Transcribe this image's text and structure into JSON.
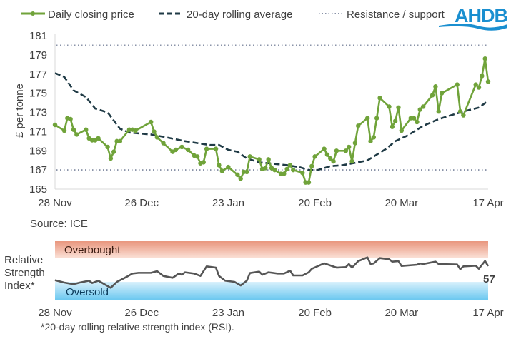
{
  "legend": {
    "price": "Daily closing price",
    "average": "20-day rolling average",
    "levels": "Resistance / support"
  },
  "logo": {
    "text": "AHDB",
    "color": "#1a8fd0"
  },
  "source": "Source: ICE",
  "footnote": "*20-day rolling relative strength index (RSI).",
  "colors": {
    "price": "#70a33a",
    "average": "#1f3a45",
    "levels": "#8a93a8",
    "rsi": "#555555",
    "overbought": "#e8937a",
    "oversold": "#6cc8f0"
  },
  "chart_data": [
    {
      "type": "line",
      "ylabel": "£ per tonne",
      "ylim": [
        165,
        181
      ],
      "yticks": [
        "181",
        "179",
        "177",
        "175",
        "173",
        "171",
        "169",
        "167",
        "165"
      ],
      "xlim": [
        "28 Nov",
        "17 Apr"
      ],
      "xticks": [
        "28 Nov",
        "26 Dec",
        "23 Jan",
        "20 Feb",
        "20 Mar",
        "17 Apr"
      ],
      "grid": false,
      "legend": "top",
      "reference_lines": [
        {
          "name": "Resistance / support",
          "y": 180
        },
        {
          "name": "Resistance / support",
          "y": 167
        }
      ],
      "series": [
        {
          "name": "Daily closing price",
          "style": "solid-with-markers",
          "points": [
            [
              "28 Nov",
              171.7
            ],
            [
              "1 Dec",
              171.1
            ],
            [
              "2 Dec",
              172.4
            ],
            [
              "3 Dec",
              172.3
            ],
            [
              "4 Dec",
              171.2
            ],
            [
              "5 Dec",
              170.7
            ],
            [
              "8 Dec",
              171.2
            ],
            [
              "9 Dec",
              170.3
            ],
            [
              "10 Dec",
              170.1
            ],
            [
              "11 Dec",
              170.1
            ],
            [
              "12 Dec",
              170.3
            ],
            [
              "15 Dec",
              169.4
            ],
            [
              "16 Dec",
              168.2
            ],
            [
              "17 Dec",
              168.9
            ],
            [
              "18 Dec",
              170.0
            ],
            [
              "19 Dec",
              170.0
            ],
            [
              "22 Dec",
              171.2
            ],
            [
              "23 Dec",
              171.2
            ],
            [
              "24 Dec",
              171.1
            ],
            [
              "29 Dec",
              172.0
            ],
            [
              "30 Dec",
              171.0
            ],
            [
              "31 Dec",
              170.4
            ],
            [
              "2 Jan",
              169.8
            ],
            [
              "5 Jan",
              168.9
            ],
            [
              "6 Jan",
              169.1
            ],
            [
              "8 Jan",
              169.4
            ],
            [
              "10 Jan",
              169.1
            ],
            [
              "12 Jan",
              168.5
            ],
            [
              "13 Jan",
              168.4
            ],
            [
              "14 Jan",
              167.7
            ],
            [
              "15 Jan",
              167.8
            ],
            [
              "16 Jan",
              169.2
            ],
            [
              "19 Jan",
              169.2
            ],
            [
              "20 Jan",
              167.5
            ],
            [
              "21 Jan",
              166.9
            ],
            [
              "23 Jan",
              167.3
            ],
            [
              "26 Jan",
              166.5
            ],
            [
              "27 Jan",
              166.1
            ],
            [
              "28 Jan",
              166.8
            ],
            [
              "29 Jan",
              166.8
            ],
            [
              "30 Jan",
              168.4
            ],
            [
              "2 Feb",
              168.1
            ],
            [
              "3 Feb",
              167.1
            ],
            [
              "4 Feb",
              167.2
            ],
            [
              "5 Feb",
              168.1
            ],
            [
              "6 Feb",
              167.2
            ],
            [
              "7 Feb",
              167.0
            ],
            [
              "9 Feb",
              166.6
            ],
            [
              "10 Feb",
              166.6
            ],
            [
              "11 Feb",
              167.1
            ],
            [
              "12 Feb",
              167.5
            ],
            [
              "13 Feb",
              167.0
            ],
            [
              "16 Feb",
              166.7
            ],
            [
              "17 Feb",
              165.7
            ],
            [
              "18 Feb",
              165.7
            ],
            [
              "19 Feb",
              167.4
            ],
            [
              "20 Feb",
              168.4
            ],
            [
              "23 Feb",
              169.2
            ],
            [
              "24 Feb",
              168.6
            ],
            [
              "25 Feb",
              168.2
            ],
            [
              "26 Feb",
              167.9
            ],
            [
              "27 Feb",
              169.0
            ],
            [
              "2 Mar",
              169.0
            ],
            [
              "3 Mar",
              169.4
            ],
            [
              "4 Mar",
              167.9
            ],
            [
              "5 Mar",
              169.8
            ],
            [
              "6 Mar",
              171.6
            ],
            [
              "9 Mar",
              172.4
            ],
            [
              "10 Mar",
              170.0
            ],
            [
              "11 Mar",
              170.4
            ],
            [
              "12 Mar",
              172.4
            ],
            [
              "13 Mar",
              174.5
            ],
            [
              "16 Mar",
              173.6
            ],
            [
              "17 Mar",
              171.5
            ],
            [
              "18 Mar",
              172.1
            ],
            [
              "19 Mar",
              173.5
            ],
            [
              "20 Mar",
              171.1
            ],
            [
              "23 Mar",
              172.4
            ],
            [
              "24 Mar",
              172.4
            ],
            [
              "25 Mar",
              172.0
            ],
            [
              "26 Mar",
              173.3
            ],
            [
              "27 Mar",
              173.6
            ],
            [
              "30 Mar",
              174.8
            ],
            [
              "31 Mar",
              175.7
            ],
            [
              "1 Apr",
              173.1
            ],
            [
              "2 Apr",
              175.0
            ],
            [
              "7 Apr",
              175.9
            ],
            [
              "8 Apr",
              173.1
            ],
            [
              "9 Apr",
              172.7
            ],
            [
              "13 Apr",
              175.9
            ],
            [
              "14 Apr",
              175.6
            ],
            [
              "15 Apr",
              176.8
            ],
            [
              "16 Apr",
              178.6
            ],
            [
              "17 Apr",
              176.2
            ]
          ]
        },
        {
          "name": "20-day rolling average",
          "style": "dashed",
          "points": [
            [
              "28 Nov",
              177.1
            ],
            [
              "1 Dec",
              176.7
            ],
            [
              "4 Dec",
              175.3
            ],
            [
              "8 Dec",
              174.6
            ],
            [
              "11 Dec",
              173.4
            ],
            [
              "15 Dec",
              173.0
            ],
            [
              "19 Dec",
              171.3
            ],
            [
              "22 Dec",
              170.9
            ],
            [
              "29 Dec",
              170.7
            ],
            [
              "3 Jan",
              170.4
            ],
            [
              "9 Jan",
              170.0
            ],
            [
              "17 Jan",
              169.6
            ],
            [
              "20 Jan",
              169.6
            ],
            [
              "23 Jan",
              169.1
            ],
            [
              "26 Jan",
              168.9
            ],
            [
              "29 Jan",
              168.2
            ],
            [
              "2 Feb",
              167.8
            ],
            [
              "8 Feb",
              167.6
            ],
            [
              "11 Feb",
              167.5
            ],
            [
              "15 Feb",
              167.3
            ],
            [
              "18 Feb",
              167.0
            ],
            [
              "21 Feb",
              167.0
            ],
            [
              "25 Feb",
              167.4
            ],
            [
              "1 Mar",
              167.5
            ],
            [
              "6 Mar",
              167.8
            ],
            [
              "9 Mar",
              168.0
            ],
            [
              "12 Mar",
              168.6
            ],
            [
              "15 Mar",
              169.2
            ],
            [
              "18 Mar",
              170.0
            ],
            [
              "22 Mar",
              170.6
            ],
            [
              "27 Mar",
              171.6
            ],
            [
              "1 Apr",
              172.3
            ],
            [
              "5 Apr",
              172.7
            ],
            [
              "9 Apr",
              173.1
            ],
            [
              "14 Apr",
              173.5
            ],
            [
              "17 Apr",
              174.2
            ]
          ]
        }
      ]
    },
    {
      "type": "line",
      "ylabel": "Relative Strength Index*",
      "ylabel_lines": [
        "Relative",
        "Strength",
        "Index*"
      ],
      "ylim": [
        0,
        100
      ],
      "xticks": [
        "28 Nov",
        "26 Dec",
        "23 Jan",
        "20 Feb",
        "20 Mar",
        "17 Apr"
      ],
      "bands": [
        {
          "label": "Overbought",
          "from": 70,
          "to": 100
        },
        {
          "label": "Oversold",
          "from": 0,
          "to": 30
        }
      ],
      "last_value_label": "57",
      "series": [
        {
          "points": [
            [
              "28 Nov",
              33.1
            ],
            [
              "1 Dec",
              29.1
            ],
            [
              "4 Dec",
              26.3
            ],
            [
              "6 Dec",
              29.1
            ],
            [
              "9 Dec",
              32.3
            ],
            [
              "10 Dec",
              28.3
            ],
            [
              "12 Dec",
              32.3
            ],
            [
              "16 Dec",
              20.2
            ],
            [
              "18 Dec",
              30.3
            ],
            [
              "21 Dec",
              38.4
            ],
            [
              "23 Dec",
              44.4
            ],
            [
              "25 Dec",
              45.6
            ],
            [
              "29 Dec",
              45.6
            ],
            [
              "31 Dec",
              48.5
            ],
            [
              "2 Jan",
              40.4
            ],
            [
              "5 Jan",
              37.2
            ],
            [
              "7 Jan",
              44.4
            ],
            [
              "8 Jan",
              42.4
            ],
            [
              "9 Jan",
              46.5
            ],
            [
              "12 Jan",
              44.4
            ],
            [
              "14 Jan",
              40.4
            ],
            [
              "16 Jan",
              56.6
            ],
            [
              "19 Jan",
              54.5
            ],
            [
              "20 Jan",
              40.4
            ],
            [
              "22 Jan",
              32.3
            ],
            [
              "25 Jan",
              30.3
            ],
            [
              "27 Jan",
              24.2
            ],
            [
              "29 Jan",
              32.3
            ],
            [
              "30 Jan",
              45.2
            ],
            [
              "2 Feb",
              47.7
            ],
            [
              "3 Feb",
              42.4
            ],
            [
              "5 Feb",
              46.5
            ],
            [
              "8 Feb",
              44.4
            ],
            [
              "10 Feb",
              44.4
            ],
            [
              "12 Feb",
              49.3
            ],
            [
              "13 Feb",
              41.2
            ],
            [
              "16 Feb",
              41.2
            ],
            [
              "18 Feb",
              46.5
            ],
            [
              "19 Feb",
              52.5
            ],
            [
              "23 Feb",
              61.8
            ],
            [
              "27 Feb",
              54.5
            ],
            [
              "2 Mar",
              55.4
            ],
            [
              "3 Mar",
              60.6
            ],
            [
              "4 Mar",
              54.5
            ],
            [
              "6 Mar",
              65.5
            ],
            [
              "9 Mar",
              71.9
            ],
            [
              "10 Mar",
              60.6
            ],
            [
              "11 Mar",
              61.5
            ],
            [
              "13 Mar",
              70.7
            ],
            [
              "16 Mar",
              68.7
            ],
            [
              "17 Mar",
              64.6
            ],
            [
              "19 Mar",
              65.5
            ],
            [
              "20 Mar",
              57.3
            ],
            [
              "25 Mar",
              59.4
            ],
            [
              "26 Mar",
              61.5
            ],
            [
              "27 Mar",
              60.6
            ],
            [
              "31 Mar",
              64.6
            ],
            [
              "1 Apr",
              60.6
            ],
            [
              "7 Apr",
              59.8
            ],
            [
              "8 Apr",
              51.8
            ],
            [
              "9 Apr",
              56.6
            ],
            [
              "13 Apr",
              57.8
            ],
            [
              "14 Apr",
              52.5
            ],
            [
              "16 Apr",
              65.8
            ],
            [
              "17 Apr",
              57
            ]
          ]
        }
      ]
    }
  ]
}
